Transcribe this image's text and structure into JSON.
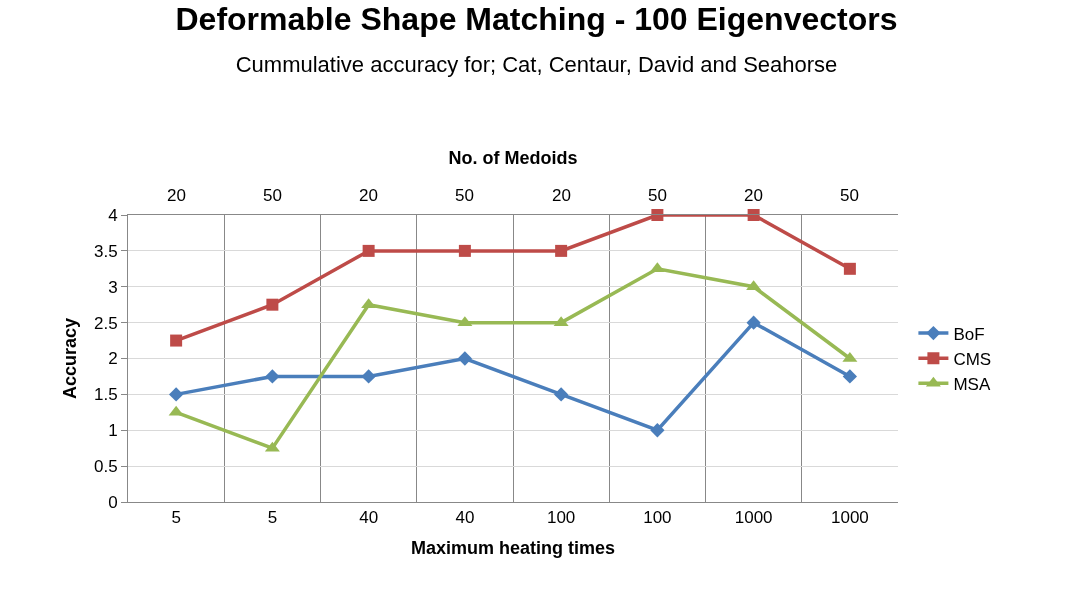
{
  "chart_data": {
    "type": "line",
    "title": "Deformable Shape Matching - 100 Eigenvectors",
    "subtitle": "Cummulative accuracy for; Cat, Centaur, David and Seahorse",
    "xlabel": "Maximum heating times",
    "ylabel": "Accuracy",
    "x2label": "No. of Medoids",
    "categories": [
      "5",
      "5",
      "40",
      "40",
      "100",
      "100",
      "1000",
      "1000"
    ],
    "annotations": [
      "20",
      "50",
      "20",
      "50",
      "20",
      "50",
      "20",
      "50"
    ],
    "series": [
      {
        "name": "BoF",
        "color": "#4a7ebb",
        "marker": "diamond",
        "values": [
          1.5,
          1.75,
          1.75,
          2,
          1.5,
          1,
          2.5,
          1.75
        ]
      },
      {
        "name": "CMS",
        "color": "#be4b48",
        "marker": "square",
        "values": [
          2.25,
          2.75,
          3.5,
          3.5,
          3.5,
          4,
          4,
          3.25
        ]
      },
      {
        "name": "MSA",
        "color": "#98b954",
        "marker": "triangle",
        "values": [
          1.25,
          0.75,
          2.75,
          2.5,
          2.5,
          3.25,
          3,
          2
        ]
      }
    ],
    "ylim": [
      0,
      4
    ],
    "yticks": [
      0,
      0.5,
      1,
      1.5,
      2,
      2.5,
      3,
      3.5,
      4
    ],
    "grid": true,
    "legend": "right",
    "line_style": "solid"
  }
}
